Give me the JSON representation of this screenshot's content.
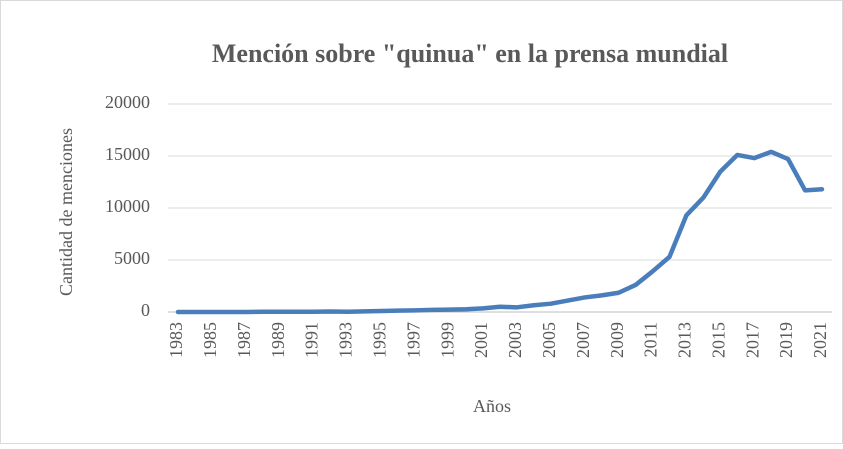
{
  "chart_data": {
    "type": "line",
    "title": "Mención sobre \"quinua\" en la prensa mundial",
    "x_label": "Años",
    "y_label": "Cantidad de menciones",
    "x": [
      1983,
      1984,
      1985,
      1986,
      1987,
      1988,
      1989,
      1990,
      1991,
      1992,
      1993,
      1994,
      1995,
      1996,
      1997,
      1998,
      1999,
      2000,
      2001,
      2002,
      2003,
      2004,
      2005,
      2006,
      2007,
      2008,
      2009,
      2010,
      2011,
      2012,
      2013,
      2014,
      2015,
      2016,
      2017,
      2018,
      2019,
      2020,
      2021
    ],
    "series": [
      {
        "name": "Cantidad de menciones",
        "color": "#4a7ebb",
        "values": [
          0,
          0,
          0,
          0,
          0,
          20,
          20,
          20,
          20,
          50,
          30,
          60,
          100,
          130,
          160,
          200,
          230,
          260,
          350,
          500,
          450,
          650,
          800,
          1100,
          1400,
          1600,
          1850,
          2600,
          3900,
          5300,
          9300,
          11000,
          13500,
          15100,
          14800,
          15400,
          14700,
          11700,
          11800
        ]
      }
    ],
    "xlim": [
      1983,
      2021
    ],
    "xticks": [
      1983,
      1985,
      1987,
      1989,
      1991,
      1993,
      1995,
      1997,
      1999,
      2001,
      2003,
      2005,
      2007,
      2009,
      2011,
      2013,
      2015,
      2017,
      2019,
      2021
    ],
    "ylim": [
      0,
      20000
    ],
    "yticks": [
      0,
      5000,
      10000,
      15000,
      20000
    ],
    "grid": true
  }
}
